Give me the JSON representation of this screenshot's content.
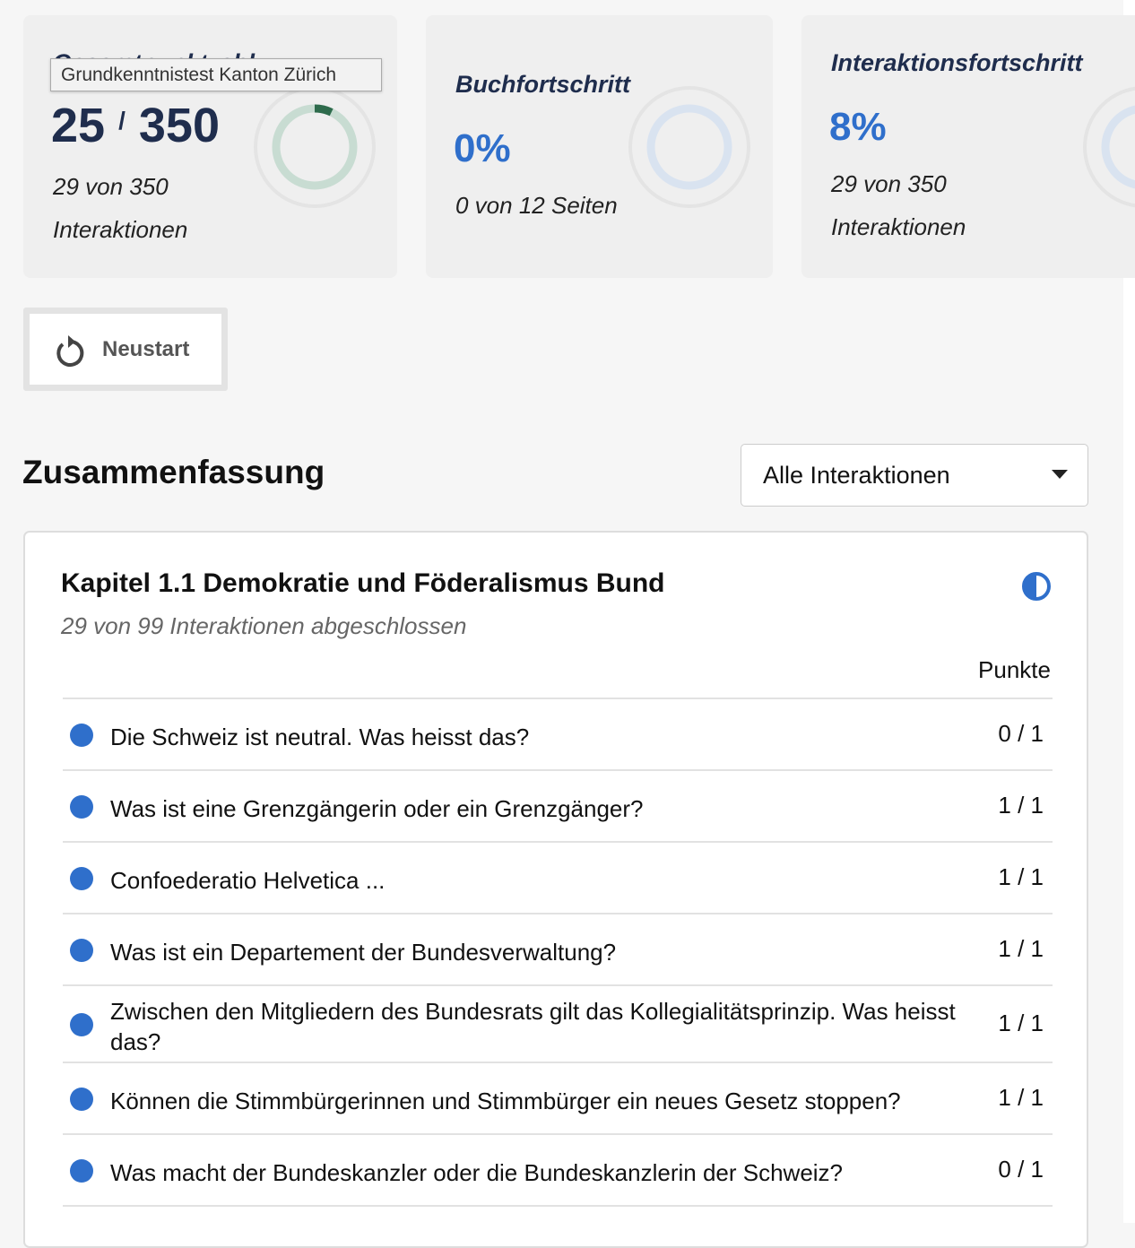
{
  "tooltip": "Grundkenntnistest Kanton Zürich",
  "cards": [
    {
      "title": "Gesamtpunktzahl",
      "score": 25,
      "separator": "/",
      "max": 350,
      "detail": "29 von 350 Interaktionen"
    },
    {
      "title": "Buchfortschritt",
      "percent": "0%",
      "detail": "0 von 12 Seiten"
    },
    {
      "title": "Interaktionsfortschritt",
      "percent": "8%",
      "detail": "29 von 350 Interaktionen"
    }
  ],
  "restart_button": "Neustart",
  "summary": {
    "title": "Zusammenfassung",
    "filter": "Alle Interaktionen"
  },
  "chapter": {
    "title": "Kapitel 1.1 Demokratie und Föderalismus Bund",
    "subtitle": "29 von 99 Interaktionen abgeschlossen",
    "points_header": "Punkte",
    "rows": [
      {
        "question": "Die Schweiz ist neutral. Was heisst das?",
        "points": "0 / 1"
      },
      {
        "question": "Was ist eine Grenzgängerin oder ein Grenzgänger?",
        "points": "1 / 1"
      },
      {
        "question": "Confoederatio Helvetica ...",
        "points": "1 / 1"
      },
      {
        "question": "Was ist ein Departement der Bundesverwaltung?",
        "points": "1 / 1"
      },
      {
        "question": "Zwischen den Mitgliedern des Bundesrats gilt das Kollegialitätsprinzip. Was heisst das?",
        "points": "1 / 1"
      },
      {
        "question": "Können die Stimmbürgerinnen und Stimmbürger ein neues Gesetz stoppen?",
        "points": "1 / 1"
      },
      {
        "question": "Was macht der Bundeskanzler oder die Bundeskanzlerin der Schweiz?",
        "points": "0 / 1"
      }
    ]
  }
}
